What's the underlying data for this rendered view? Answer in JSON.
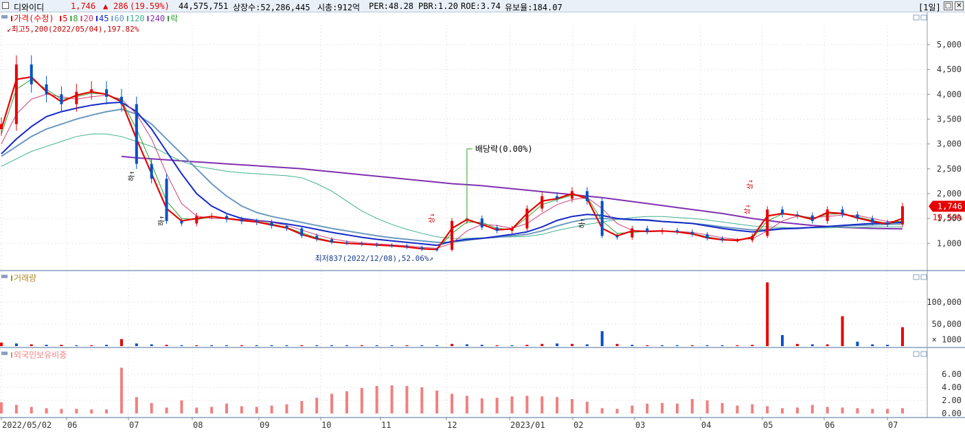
{
  "header": {
    "name": "디와이디",
    "price": "1,746",
    "arrow": "▲",
    "change": "286",
    "pct": "(19.59%)",
    "volume": "44,575,751",
    "shares": "상장수:52,286,445",
    "mcap": "시총:912억",
    "per": "PER:48.28",
    "pbr": "PBR:1.20",
    "roe": "ROE:3.74",
    "float": "유보율:184.07",
    "period": "[1일]",
    "btn_max": "□",
    "btn_close": "✕"
  },
  "colors": {
    "up": "#e60000",
    "down": "#0050c8",
    "ma5": "#e60000",
    "ma8": "#2aa02a",
    "ma20": "#d0407a",
    "ma45": "#1428c8",
    "ma60": "#6a98c0",
    "ma120": "#40b090",
    "ma240": "#8030b0",
    "foreign": "#f08080"
  },
  "chart_data": [
    {
      "type": "line",
      "panel": "price",
      "legend": [
        {
          "label": "가격(수정)",
          "color": "#e60000"
        },
        {
          "label": "5",
          "color": "#e60000"
        },
        {
          "label": "8",
          "color": "#2aa02a"
        },
        {
          "label": "20",
          "color": "#d0407a"
        },
        {
          "label": "45",
          "color": "#1428c8"
        },
        {
          "label": "60",
          "color": "#6a98c0"
        },
        {
          "label": "120",
          "color": "#40b090"
        },
        {
          "label": "240",
          "color": "#8030b0"
        },
        {
          "label": "락",
          "color": "#2aa02a"
        }
      ],
      "y_ticks": [
        "5,000",
        "4,500",
        "4,000",
        "3,500",
        "3,000",
        "2,500",
        "2,000",
        "1,500",
        "1,000"
      ],
      "ylim": [
        700,
        5400
      ],
      "x_ticks": [
        "2022/05/02",
        "06",
        "07",
        "08",
        "09",
        "10",
        "11",
        "12",
        "2023/01",
        "02",
        "03",
        "04",
        "05",
        "06",
        "07"
      ],
      "annotations": {
        "high": "최고5,200(2022/05/04),197.82%",
        "low": "최저837(2022/12/08),52.06%",
        "dividend": "배당락(0.00%)",
        "last_price": "1,746",
        "last_pct": "19.59%",
        "limit_down": "하",
        "limit_up": "상"
      },
      "x": [
        0,
        5,
        10,
        15,
        20,
        25,
        30,
        35,
        40,
        45,
        50,
        55,
        60,
        65,
        70,
        75,
        80,
        85,
        90,
        95,
        100,
        105,
        110,
        115,
        120,
        125,
        130,
        135,
        140,
        145,
        150,
        155,
        160,
        165,
        170,
        175,
        180,
        185,
        190,
        195,
        200,
        205,
        210,
        215,
        220,
        225,
        230,
        235,
        240,
        245,
        250,
        255,
        260,
        265,
        270,
        275,
        280,
        285,
        290,
        295,
        300
      ],
      "close": [
        3400,
        4600,
        4200,
        4000,
        3800,
        4050,
        4100,
        3950,
        3800,
        2600,
        2300,
        1450,
        1400,
        1550,
        1550,
        1480,
        1440,
        1420,
        1350,
        1300,
        1150,
        1080,
        1020,
        1000,
        980,
        960,
        950,
        920,
        880,
        870,
        1450,
        1500,
        1320,
        1250,
        1300,
        1700,
        1950,
        1900,
        2050,
        1850,
        1150,
        1120,
        1300,
        1230,
        1260,
        1230,
        1180,
        1100,
        1060,
        1060,
        1150,
        1680,
        1580,
        1560,
        1450,
        1680,
        1580,
        1500,
        1420,
        1380,
        1746
      ],
      "series": [
        {
          "name": "5",
          "values": [
            3300,
            4300,
            4350,
            4050,
            3850,
            3980,
            4050,
            4000,
            3850,
            3100,
            2400,
            1700,
            1450,
            1500,
            1540,
            1500,
            1460,
            1430,
            1370,
            1310,
            1180,
            1090,
            1030,
            1000,
            985,
            965,
            950,
            925,
            890,
            875,
            1300,
            1480,
            1380,
            1270,
            1290,
            1600,
            1850,
            1900,
            2000,
            1900,
            1300,
            1150,
            1250,
            1240,
            1250,
            1230,
            1190,
            1110,
            1070,
            1060,
            1120,
            1550,
            1600,
            1560,
            1480,
            1620,
            1600,
            1510,
            1440,
            1390,
            1500
          ]
        },
        {
          "name": "8",
          "values": [
            3200,
            4100,
            4300,
            4100,
            3900,
            3950,
            4020,
            4000,
            3880,
            3300,
            2600,
            1850,
            1500,
            1480,
            1530,
            1510,
            1470,
            1440,
            1390,
            1320,
            1210,
            1110,
            1040,
            1010,
            990,
            970,
            955,
            930,
            900,
            880,
            1200,
            1430,
            1420,
            1300,
            1280,
            1520,
            1780,
            1880,
            1970,
            1930,
            1450,
            1200,
            1220,
            1240,
            1245,
            1235,
            1200,
            1130,
            1080,
            1065,
            1100,
            1450,
            1590,
            1570,
            1500,
            1580,
            1600,
            1530,
            1460,
            1400,
            1450
          ]
        },
        {
          "name": "20",
          "values": [
            3000,
            3600,
            3900,
            4000,
            3950,
            3900,
            3950,
            3980,
            3900,
            3600,
            3100,
            2400,
            1800,
            1550,
            1500,
            1500,
            1480,
            1460,
            1420,
            1360,
            1270,
            1170,
            1090,
            1040,
            1010,
            990,
            970,
            950,
            920,
            900,
            1000,
            1250,
            1380,
            1360,
            1300,
            1400,
            1600,
            1780,
            1880,
            1920,
            1700,
            1400,
            1260,
            1230,
            1240,
            1240,
            1220,
            1170,
            1110,
            1080,
            1090,
            1250,
            1450,
            1550,
            1520,
            1540,
            1570,
            1560,
            1500,
            1440,
            1440
          ]
        },
        {
          "name": "45",
          "values": [
            2800,
            3100,
            3350,
            3550,
            3650,
            3720,
            3780,
            3820,
            3840,
            3650,
            3300,
            2850,
            2400,
            2000,
            1750,
            1600,
            1500,
            1460,
            1430,
            1390,
            1340,
            1280,
            1220,
            1170,
            1120,
            1080,
            1050,
            1020,
            990,
            960,
            1040,
            1080,
            1100,
            1140,
            1180,
            1230,
            1330,
            1460,
            1540,
            1580,
            1560,
            1500,
            1480,
            1470,
            1440,
            1420,
            1400,
            1350,
            1300,
            1260,
            1230,
            1260,
            1290,
            1300,
            1320,
            1340,
            1360,
            1380,
            1400,
            1410,
            1420
          ]
        },
        {
          "name": "60",
          "values": [
            2750,
            2950,
            3150,
            3300,
            3400,
            3500,
            3580,
            3650,
            3700,
            3600,
            3400,
            3100,
            2800,
            2500,
            2200,
            1950,
            1750,
            1620,
            1540,
            1480,
            1420,
            1360,
            1300,
            1250,
            1200,
            1150,
            1110,
            1080,
            1050,
            1020,
            1020,
            1060,
            1100,
            1120,
            1150,
            1180,
            1250,
            1350,
            1430,
            1490,
            1500,
            1490,
            1470,
            1460,
            1440,
            1420,
            1400,
            1370,
            1330,
            1300,
            1270,
            1280,
            1300,
            1310,
            1320,
            1330,
            1350,
            1360,
            1370,
            1380,
            1390
          ]
        },
        {
          "name": "120",
          "values": [
            2550,
            2700,
            2850,
            2950,
            3050,
            3150,
            3200,
            3200,
            3150,
            3050,
            2950,
            2800,
            2650,
            2550,
            2500,
            2450,
            2420,
            2400,
            2380,
            2360,
            2320,
            2200,
            2050,
            1850,
            1650,
            1500,
            1380,
            1280,
            1200,
            1130,
            1100,
            1100,
            1110,
            1120,
            1130,
            1140,
            1180,
            1260,
            1320,
            1380,
            1430,
            1480,
            1520,
            1540,
            1540,
            1520,
            1500,
            1470,
            1430,
            1390,
            1350,
            1330,
            1320,
            1310,
            1310,
            1310,
            1320,
            1320,
            1330,
            1330,
            1330
          ]
        },
        {
          "name": "240",
          "values": [
            null,
            null,
            null,
            null,
            null,
            null,
            null,
            null,
            2750,
            2720,
            2700,
            2680,
            2660,
            2640,
            2620,
            2600,
            2580,
            2560,
            2540,
            2520,
            2500,
            2470,
            2440,
            2410,
            2380,
            2350,
            2320,
            2290,
            2260,
            2230,
            2200,
            2180,
            2160,
            2130,
            2100,
            2070,
            2040,
            2010,
            1980,
            1950,
            1920,
            1880,
            1840,
            1800,
            1760,
            1720,
            1680,
            1640,
            1600,
            1550,
            1500,
            1460,
            1420,
            1390,
            1360,
            1340,
            1320,
            1310,
            1300,
            1295,
            1290
          ]
        }
      ]
    },
    {
      "type": "bar",
      "panel": "volume",
      "legend": [
        {
          "label": "거래량",
          "color": "#b08a2a"
        }
      ],
      "y_ticks": [
        "100,000",
        "50,000",
        "× 1000"
      ],
      "ylim": [
        0,
        150000
      ],
      "x": [
        0,
        5,
        10,
        15,
        20,
        25,
        30,
        35,
        40,
        45,
        50,
        55,
        60,
        65,
        70,
        75,
        80,
        85,
        90,
        95,
        100,
        105,
        110,
        115,
        120,
        125,
        130,
        135,
        140,
        145,
        150,
        155,
        160,
        165,
        170,
        175,
        180,
        185,
        190,
        195,
        200,
        205,
        210,
        215,
        220,
        225,
        230,
        235,
        240,
        245,
        250,
        255,
        260,
        265,
        270,
        275,
        280,
        285,
        290,
        295,
        300
      ],
      "values": [
        8000,
        6000,
        4000,
        3000,
        3000,
        2000,
        2000,
        3000,
        16000,
        6000,
        4000,
        3000,
        2000,
        2000,
        2000,
        2000,
        2000,
        2000,
        2000,
        2000,
        2000,
        2000,
        2000,
        2000,
        2000,
        2000,
        2000,
        2000,
        2000,
        2000,
        5000,
        4000,
        3000,
        2000,
        2000,
        3000,
        5000,
        6000,
        5000,
        4000,
        34000,
        5000,
        3000,
        2000,
        2000,
        2000,
        2000,
        2000,
        2000,
        2000,
        3000,
        145000,
        25000,
        5000,
        4000,
        4000,
        68000,
        10000,
        4000,
        3000,
        43000
      ],
      "up": [
        true,
        false,
        true,
        false,
        true,
        false,
        true,
        false,
        true,
        false,
        false,
        true,
        false,
        true,
        false,
        false,
        true,
        false,
        false,
        false,
        true,
        false,
        false,
        false,
        true,
        false,
        false,
        true,
        false,
        false,
        true,
        false,
        false,
        true,
        false,
        true,
        true,
        false,
        true,
        false,
        false,
        true,
        false,
        true,
        false,
        false,
        true,
        false,
        false,
        true,
        true,
        true,
        false,
        true,
        false,
        true,
        true,
        false,
        false,
        false,
        true
      ]
    },
    {
      "type": "bar",
      "panel": "foreign",
      "legend": [
        {
          "label": "외국인보유비중",
          "color": "#f08080"
        }
      ],
      "y_ticks": [
        "6.00",
        "4.00",
        "2.00",
        "0.00"
      ],
      "ylim": [
        0,
        8.2
      ],
      "x": [
        0,
        5,
        10,
        15,
        20,
        25,
        30,
        35,
        40,
        45,
        50,
        55,
        60,
        65,
        70,
        75,
        80,
        85,
        90,
        95,
        100,
        105,
        110,
        115,
        120,
        125,
        130,
        135,
        140,
        145,
        150,
        155,
        160,
        165,
        170,
        175,
        180,
        185,
        190,
        195,
        200,
        205,
        210,
        215,
        220,
        225,
        230,
        235,
        240,
        245,
        250,
        255,
        260,
        265,
        270,
        275,
        280,
        285,
        290,
        295,
        300
      ],
      "values": [
        1.7,
        1.3,
        1.0,
        0.8,
        0.7,
        0.7,
        0.6,
        0.6,
        7.0,
        2.5,
        1.6,
        0.9,
        2.0,
        0.9,
        1.0,
        1.5,
        1.1,
        1.0,
        1.2,
        1.4,
        1.9,
        2.4,
        3.0,
        3.4,
        3.9,
        4.2,
        4.3,
        4.2,
        4.0,
        3.5,
        3.0,
        2.7,
        2.3,
        2.4,
        2.6,
        2.7,
        2.6,
        2.5,
        2.2,
        1.8,
        0.8,
        0.7,
        1.2,
        1.5,
        1.6,
        1.5,
        2.2,
        2.0,
        1.6,
        1.2,
        1.4,
        1.1,
        0.8,
        0.9,
        1.3,
        1.0,
        0.9,
        0.8,
        0.7,
        0.7,
        0.8
      ]
    }
  ]
}
